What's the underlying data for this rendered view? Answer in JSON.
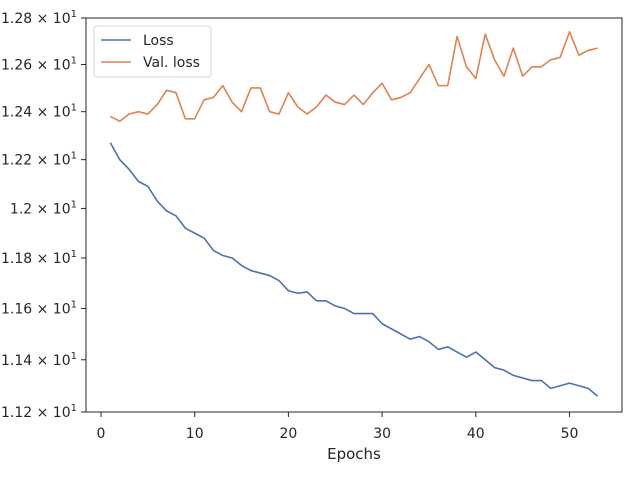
{
  "chart_data": {
    "type": "line",
    "xlabel": "Epochs",
    "ylabel": "",
    "title": "",
    "xlim": [
      -1.6,
      55.6
    ],
    "ylim": [
      11.2,
      12.8
    ],
    "log_y": true,
    "x_ticks": [
      0,
      10,
      20,
      30,
      40,
      50
    ],
    "x_tick_labels": [
      "0",
      "10",
      "20",
      "30",
      "40",
      "50"
    ],
    "y_ticks": [
      11.2,
      11.4,
      11.6,
      11.8,
      12.0,
      12.2,
      12.4,
      12.6,
      12.8
    ],
    "y_tick_labels": [
      {
        "mantissa": "1.12",
        "exp": "1"
      },
      {
        "mantissa": "1.14",
        "exp": "1"
      },
      {
        "mantissa": "1.16",
        "exp": "1"
      },
      {
        "mantissa": "1.18",
        "exp": "1"
      },
      {
        "mantissa": "1.2",
        "exp": "1"
      },
      {
        "mantissa": "1.22",
        "exp": "1"
      },
      {
        "mantissa": "1.24",
        "exp": "1"
      },
      {
        "mantissa": "1.26",
        "exp": "1"
      },
      {
        "mantissa": "1.28",
        "exp": "1"
      }
    ],
    "grid": false,
    "legend_position": "top-left",
    "x": [
      1,
      2,
      3,
      4,
      5,
      6,
      7,
      8,
      9,
      10,
      11,
      12,
      13,
      14,
      15,
      16,
      17,
      18,
      19,
      20,
      21,
      22,
      23,
      24,
      25,
      26,
      27,
      28,
      29,
      30,
      31,
      32,
      33,
      34,
      35,
      36,
      37,
      38,
      39,
      40,
      41,
      42,
      43,
      44,
      45,
      46,
      47,
      48,
      49,
      50,
      51,
      52,
      53
    ],
    "series": [
      {
        "name": "Loss",
        "color": "#4c72b0",
        "values": [
          12.27,
          12.2,
          12.16,
          12.11,
          12.09,
          12.03,
          11.99,
          11.97,
          11.92,
          11.9,
          11.88,
          11.83,
          11.81,
          11.8,
          11.77,
          11.75,
          11.74,
          11.73,
          11.71,
          11.67,
          11.66,
          11.665,
          11.63,
          11.63,
          11.61,
          11.6,
          11.58,
          11.58,
          11.58,
          11.54,
          11.52,
          11.5,
          11.48,
          11.49,
          11.47,
          11.44,
          11.45,
          11.43,
          11.41,
          11.43,
          11.4,
          11.37,
          11.36,
          11.34,
          11.33,
          11.32,
          11.32,
          11.29,
          11.3,
          11.31,
          11.3,
          11.29,
          11.26
        ]
      },
      {
        "name": "Val. loss",
        "color": "#dd8452",
        "values": [
          12.38,
          12.36,
          12.39,
          12.4,
          12.39,
          12.43,
          12.49,
          12.48,
          12.37,
          12.37,
          12.45,
          12.46,
          12.51,
          12.44,
          12.4,
          12.5,
          12.5,
          12.4,
          12.39,
          12.48,
          12.42,
          12.39,
          12.42,
          12.47,
          12.44,
          12.43,
          12.47,
          12.43,
          12.48,
          12.52,
          12.45,
          12.46,
          12.48,
          12.54,
          12.6,
          12.51,
          12.51,
          12.72,
          12.59,
          12.54,
          12.73,
          12.62,
          12.55,
          12.67,
          12.55,
          12.59,
          12.59,
          12.62,
          12.63,
          12.74,
          12.64,
          12.66,
          12.67
        ]
      }
    ]
  }
}
